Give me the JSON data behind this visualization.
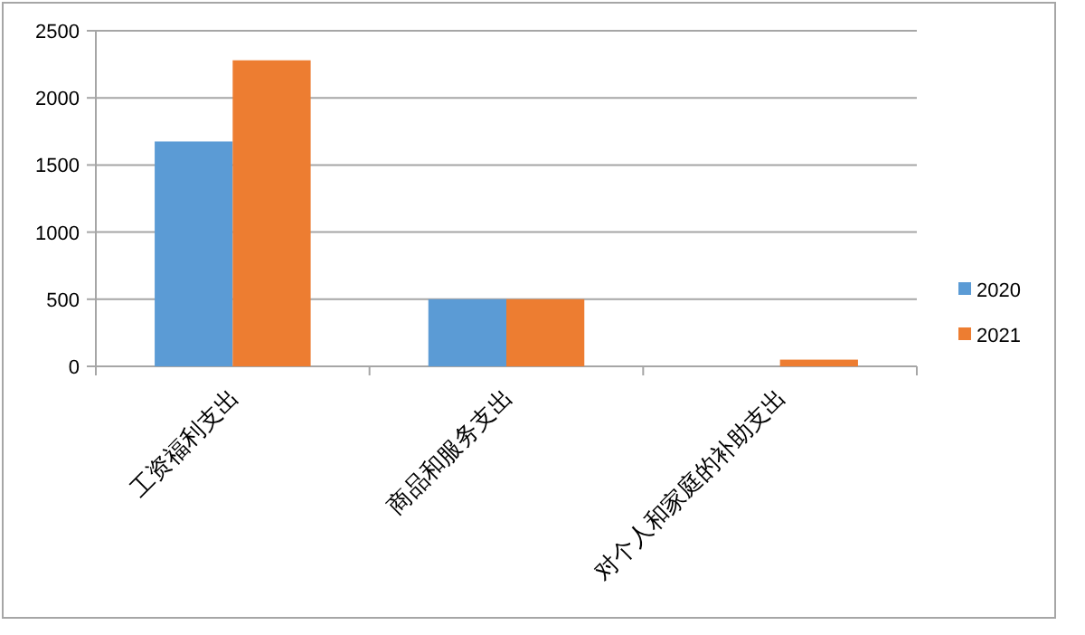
{
  "chart_data": {
    "type": "bar",
    "categories": [
      "工资福利支出",
      "商品和服务支出",
      "对个人和家庭的补助支出"
    ],
    "series": [
      {
        "name": "2020",
        "color": "#5b9bd5",
        "values": [
          1675,
          500,
          0
        ]
      },
      {
        "name": "2021",
        "color": "#ed7d31",
        "values": [
          2280,
          500,
          50
        ]
      }
    ],
    "ylim": [
      0,
      2500
    ],
    "yticks": [
      0,
      500,
      1000,
      1500,
      2000,
      2500
    ],
    "grid": "y",
    "legend": "right"
  }
}
